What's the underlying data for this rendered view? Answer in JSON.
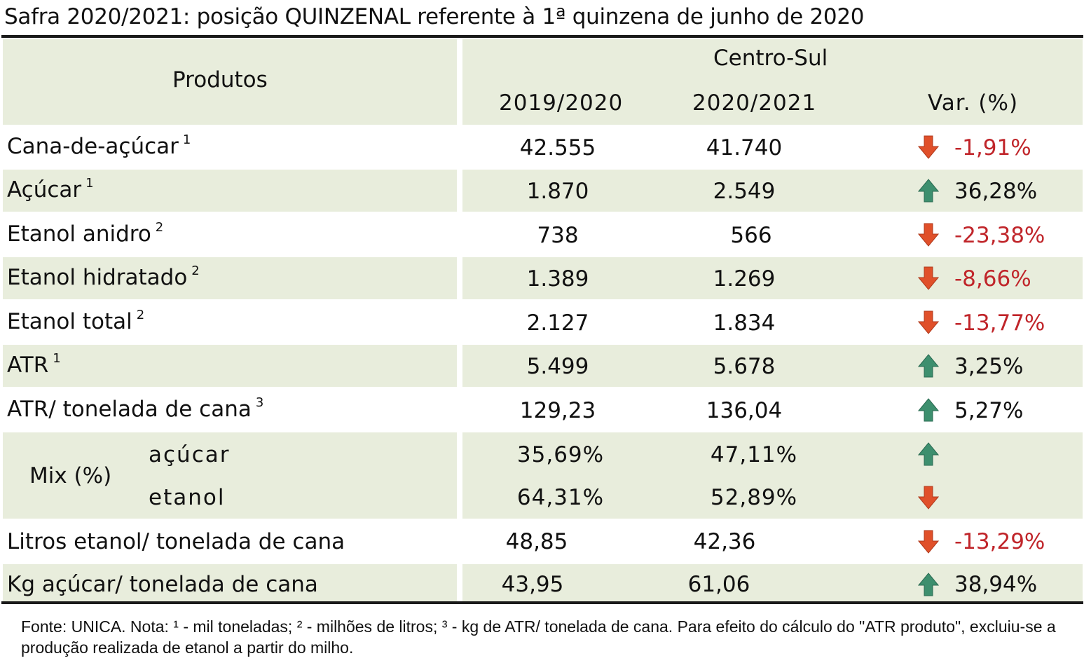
{
  "title": "Safra 2020/2021: posição QUINZENAL referente à 1ª quinzena de junho de 2020",
  "header": {
    "produtos": "Produtos",
    "region": "Centro-Sul",
    "col_prev": "2019/2020",
    "col_curr": "2020/2021",
    "col_var": "Var. (%)"
  },
  "rows": [
    {
      "label": "Cana-de-açúcar",
      "sup": "1",
      "prev": "42.555",
      "curr": "41.740",
      "var": "-1,91%",
      "dir": "down"
    },
    {
      "label": "Açúcar",
      "sup": "1",
      "prev": "1.870",
      "curr": "2.549",
      "var": "36,28%",
      "dir": "up"
    },
    {
      "label": "Etanol anidro",
      "sup": "2",
      "prev": "738",
      "curr": "566",
      "var": "-23,38%",
      "dir": "down"
    },
    {
      "label": "Etanol hidratado",
      "sup": "2",
      "prev": "1.389",
      "curr": "1.269",
      "var": "-8,66%",
      "dir": "down"
    },
    {
      "label": "Etanol total",
      "sup": "2",
      "prev": "2.127",
      "curr": "1.834",
      "var": "-13,77%",
      "dir": "down"
    },
    {
      "label": "ATR",
      "sup": "1",
      "prev": "5.499",
      "curr": "5.678",
      "var": "3,25%",
      "dir": "up"
    },
    {
      "label": "ATR/ tonelada de cana",
      "sup": "3",
      "prev": "129,23",
      "curr": "136,04",
      "var": "5,27%",
      "dir": "up"
    }
  ],
  "mix": {
    "label": "Mix (%)",
    "acucar": {
      "label": "açúcar",
      "prev": "35,69%",
      "curr": "47,11%",
      "dir": "up"
    },
    "etanol": {
      "label": "etanol",
      "prev": "64,31%",
      "curr": "52,89%",
      "dir": "down"
    }
  },
  "rows_bottom": [
    {
      "label": "Litros etanol/ tonelada de cana",
      "prev": "48,85",
      "curr": "42,36",
      "var": "-13,29%",
      "dir": "down"
    },
    {
      "label": "Kg açúcar/ tonelada de cana",
      "prev": "43,95",
      "curr": "61,06",
      "var": "38,94%",
      "dir": "up"
    }
  ],
  "footer": "Fonte: UNICA. Nota: ¹ - mil toneladas; ² - milhões de litros; ³ - kg de ATR/ tonelada de cana. Para efeito do cálculo do \"ATR produto\", excluiu-se a produção realizada de etanol a partir do milho.",
  "colors": {
    "band": "#e8eddc",
    "negative_text": "#c0252a",
    "arrow_up": "#3d8f6e",
    "arrow_down": "#e0502a"
  }
}
